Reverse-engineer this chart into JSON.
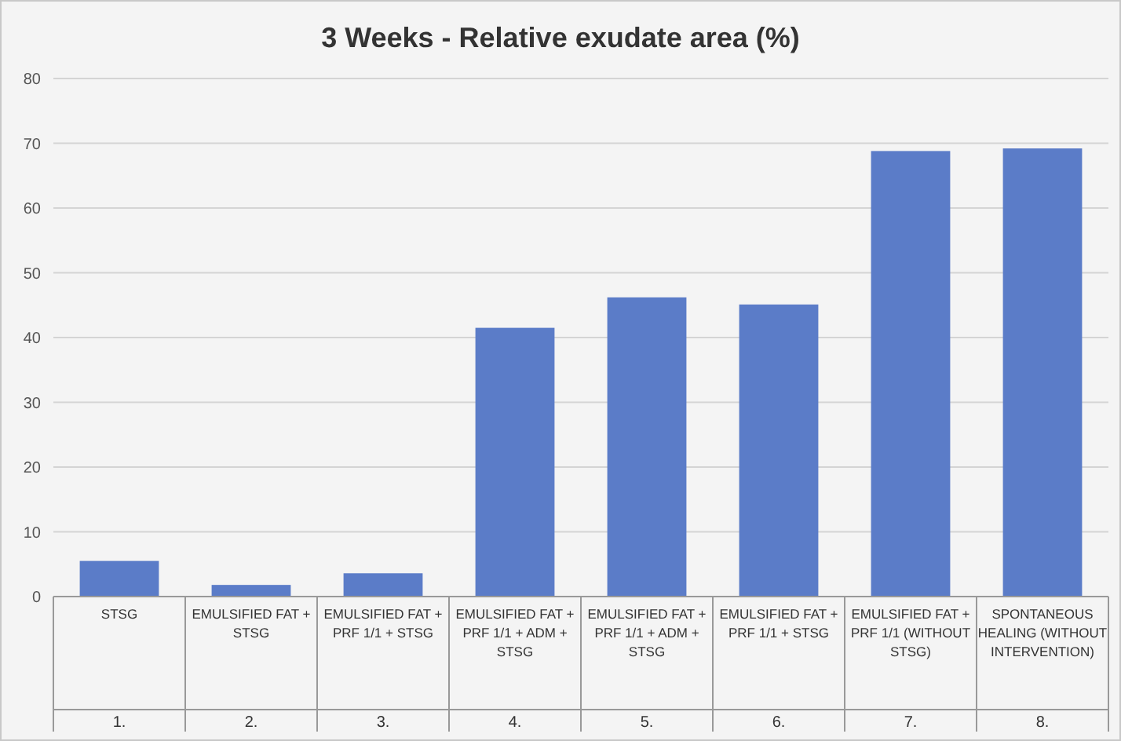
{
  "chart_data": {
    "type": "bar",
    "title": "3 Weeks - Relative exudate area (%)",
    "categories": [
      "STSG",
      "EMULSIFIED FAT + STSG",
      "EMULSIFIED FAT + PRF 1/1 + STSG",
      "EMULSIFIED FAT + PRF 1/1 + ADM + STSG",
      "EMULSIFIED FAT + PRF 1/1 + ADM + STSG",
      "EMULSIFIED FAT + PRF 1/1 + STSG",
      "EMULSIFIED FAT + PRF 1/1 (WITHOUT STSG)",
      "SPONTANEOUS HEALING (WITHOUT INTERVENTION)"
    ],
    "values": [
      5.5,
      1.8,
      3.6,
      41.5,
      46.2,
      45.1,
      68.8,
      69.2
    ],
    "color": "#5b7cc8",
    "ylim": [
      0,
      80
    ],
    "yticks": [
      0,
      10,
      20,
      30,
      40,
      50,
      60,
      70,
      80
    ],
    "grid": "y",
    "annotations": [
      "1.",
      "2.",
      "3.",
      "4.",
      "5.",
      "6.",
      "7.",
      "8."
    ]
  }
}
